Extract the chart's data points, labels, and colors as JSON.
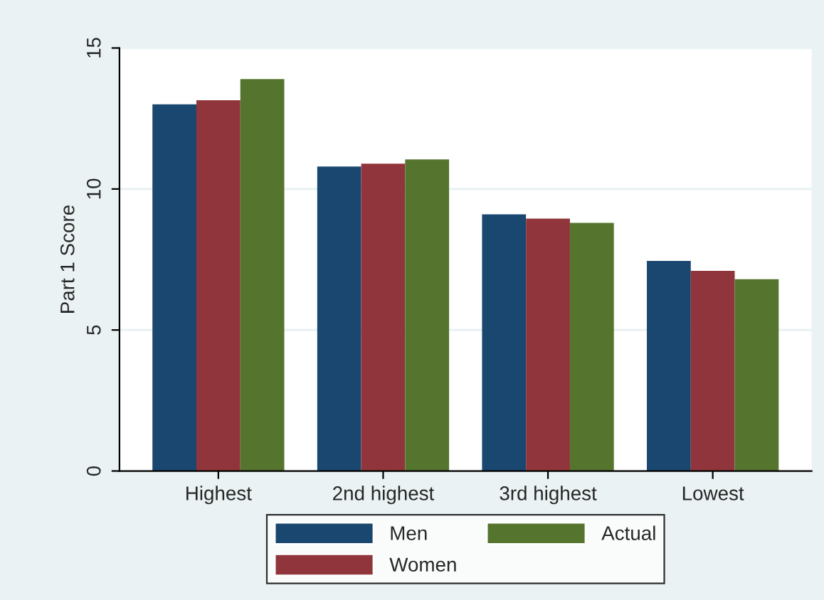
{
  "chart_data": {
    "type": "bar",
    "ylabel": "Part 1 Score",
    "categories": [
      "Highest",
      "2nd highest",
      "3rd highest",
      "Lowest"
    ],
    "series": [
      {
        "name": "Men",
        "color": "#1a476f",
        "values": [
          13.0,
          10.8,
          9.1,
          7.45
        ]
      },
      {
        "name": "Women",
        "color": "#90353b",
        "values": [
          13.15,
          10.9,
          8.95,
          7.1
        ]
      },
      {
        "name": "Actual",
        "color": "#55752f",
        "values": [
          13.9,
          11.05,
          8.8,
          6.8
        ]
      }
    ],
    "ylim": [
      0,
      15
    ],
    "yticks": [
      0,
      5,
      10,
      15
    ],
    "grid": "y",
    "legend": "bottom"
  }
}
